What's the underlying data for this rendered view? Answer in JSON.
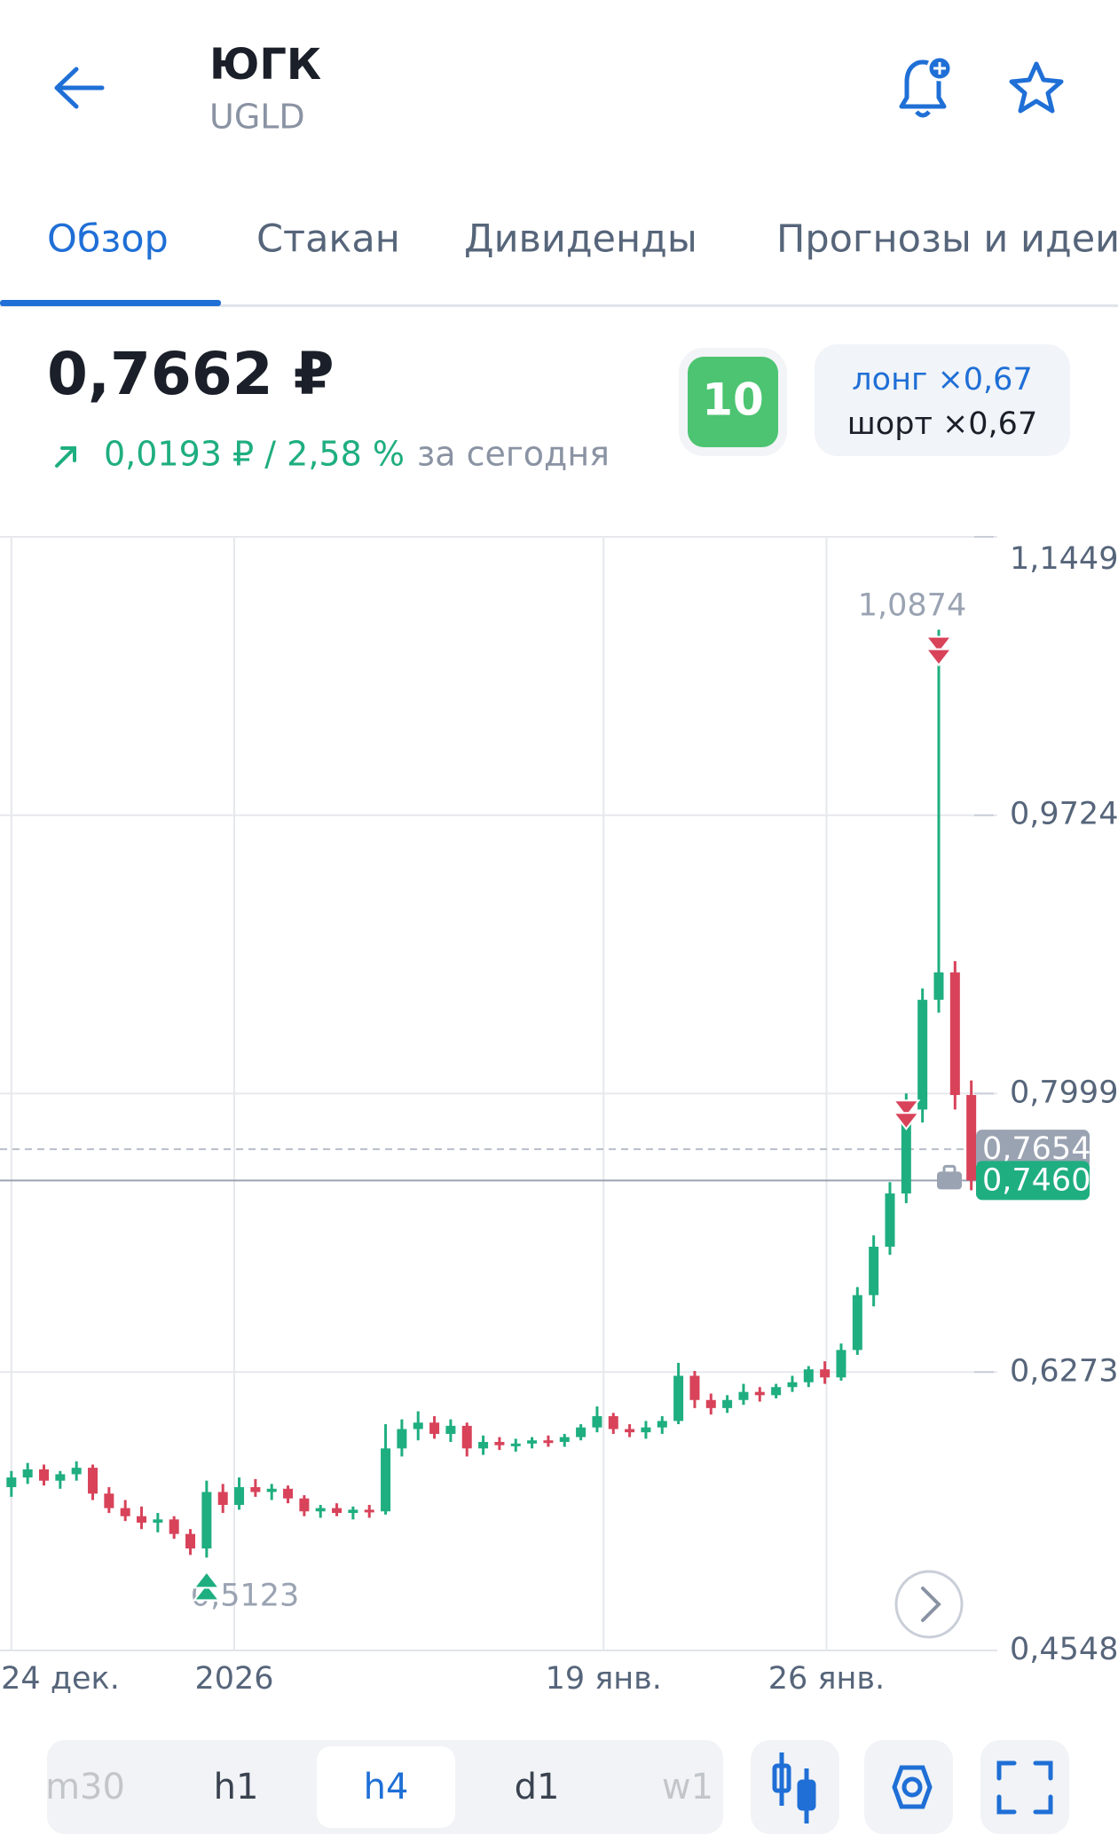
{
  "header": {
    "title": "ЮГК",
    "ticker": "UGLD"
  },
  "tabs": [
    "Обзор",
    "Стакан",
    "Дивиденды",
    "Прогнозы и идеи"
  ],
  "quote": {
    "price": "0,7662 ₽",
    "change": "0,0193 ₽ / 2,58 %",
    "period": "за сегодня",
    "badge": "10",
    "long": "лонг ×0,67",
    "short": "шорт ×0,67"
  },
  "chart_data": {
    "type": "candlestick",
    "ylim": [
      0.4548,
      1.1449
    ],
    "yticks": [
      {
        "value": 0.4548,
        "label": "0,4548"
      },
      {
        "value": 0.6273,
        "label": "0,6273"
      },
      {
        "value": 0.7999,
        "label": "0,7999"
      },
      {
        "value": 0.9724,
        "label": "0,9724"
      },
      {
        "value": 1.1449,
        "label": "1,1449"
      }
    ],
    "xlim": [
      -0.7,
      60.6
    ],
    "xticks": [
      {
        "value": 0,
        "label": "24 дек."
      },
      {
        "value": 13.7,
        "label": "2026"
      },
      {
        "value": 36.4,
        "label": "19 янв."
      },
      {
        "value": 50.1,
        "label": "26 янв."
      }
    ],
    "up_color": "#1fae80",
    "down_color": "#d8435a",
    "candles": [
      {
        "open": 0.556,
        "high": 0.566,
        "low": 0.55,
        "close": 0.562
      },
      {
        "open": 0.562,
        "high": 0.571,
        "low": 0.558,
        "close": 0.567
      },
      {
        "open": 0.567,
        "high": 0.57,
        "low": 0.557,
        "close": 0.56
      },
      {
        "open": 0.56,
        "high": 0.566,
        "low": 0.555,
        "close": 0.564
      },
      {
        "open": 0.564,
        "high": 0.572,
        "low": 0.56,
        "close": 0.568
      },
      {
        "open": 0.568,
        "high": 0.57,
        "low": 0.548,
        "close": 0.552
      },
      {
        "open": 0.552,
        "high": 0.556,
        "low": 0.54,
        "close": 0.543
      },
      {
        "open": 0.543,
        "high": 0.548,
        "low": 0.535,
        "close": 0.538
      },
      {
        "open": 0.538,
        "high": 0.544,
        "low": 0.53,
        "close": 0.534
      },
      {
        "open": 0.534,
        "high": 0.54,
        "low": 0.528,
        "close": 0.536
      },
      {
        "open": 0.536,
        "high": 0.538,
        "low": 0.524,
        "close": 0.527
      },
      {
        "open": 0.527,
        "high": 0.53,
        "low": 0.514,
        "close": 0.518
      },
      {
        "open": 0.518,
        "high": 0.56,
        "low": 0.5123,
        "close": 0.553
      },
      {
        "open": 0.553,
        "high": 0.558,
        "low": 0.54,
        "close": 0.545
      },
      {
        "open": 0.545,
        "high": 0.562,
        "low": 0.542,
        "close": 0.556
      },
      {
        "open": 0.556,
        "high": 0.561,
        "low": 0.55,
        "close": 0.553
      },
      {
        "open": 0.553,
        "high": 0.558,
        "low": 0.548,
        "close": 0.555
      },
      {
        "open": 0.555,
        "high": 0.557,
        "low": 0.546,
        "close": 0.549
      },
      {
        "open": 0.549,
        "high": 0.551,
        "low": 0.538,
        "close": 0.541
      },
      {
        "open": 0.541,
        "high": 0.545,
        "low": 0.537,
        "close": 0.543
      },
      {
        "open": 0.543,
        "high": 0.546,
        "low": 0.538,
        "close": 0.54
      },
      {
        "open": 0.54,
        "high": 0.544,
        "low": 0.536,
        "close": 0.542
      },
      {
        "open": 0.542,
        "high": 0.545,
        "low": 0.537,
        "close": 0.541
      },
      {
        "open": 0.541,
        "high": 0.595,
        "low": 0.539,
        "close": 0.58
      },
      {
        "open": 0.58,
        "high": 0.598,
        "low": 0.575,
        "close": 0.592
      },
      {
        "open": 0.592,
        "high": 0.603,
        "low": 0.585,
        "close": 0.596
      },
      {
        "open": 0.596,
        "high": 0.6,
        "low": 0.586,
        "close": 0.589
      },
      {
        "open": 0.589,
        "high": 0.598,
        "low": 0.584,
        "close": 0.594
      },
      {
        "open": 0.594,
        "high": 0.596,
        "low": 0.575,
        "close": 0.58
      },
      {
        "open": 0.58,
        "high": 0.588,
        "low": 0.576,
        "close": 0.584
      },
      {
        "open": 0.584,
        "high": 0.587,
        "low": 0.579,
        "close": 0.582
      },
      {
        "open": 0.582,
        "high": 0.586,
        "low": 0.578,
        "close": 0.583
      },
      {
        "open": 0.583,
        "high": 0.587,
        "low": 0.58,
        "close": 0.585
      },
      {
        "open": 0.585,
        "high": 0.588,
        "low": 0.581,
        "close": 0.584
      },
      {
        "open": 0.584,
        "high": 0.589,
        "low": 0.581,
        "close": 0.587
      },
      {
        "open": 0.587,
        "high": 0.595,
        "low": 0.585,
        "close": 0.593
      },
      {
        "open": 0.593,
        "high": 0.606,
        "low": 0.59,
        "close": 0.6
      },
      {
        "open": 0.6,
        "high": 0.602,
        "low": 0.589,
        "close": 0.592
      },
      {
        "open": 0.592,
        "high": 0.595,
        "low": 0.587,
        "close": 0.59
      },
      {
        "open": 0.59,
        "high": 0.597,
        "low": 0.586,
        "close": 0.593
      },
      {
        "open": 0.593,
        "high": 0.6,
        "low": 0.589,
        "close": 0.597
      },
      {
        "open": 0.597,
        "high": 0.633,
        "low": 0.595,
        "close": 0.625
      },
      {
        "open": 0.625,
        "high": 0.628,
        "low": 0.605,
        "close": 0.61
      },
      {
        "open": 0.61,
        "high": 0.614,
        "low": 0.601,
        "close": 0.605
      },
      {
        "open": 0.605,
        "high": 0.613,
        "low": 0.602,
        "close": 0.61
      },
      {
        "open": 0.61,
        "high": 0.62,
        "low": 0.607,
        "close": 0.615
      },
      {
        "open": 0.615,
        "high": 0.618,
        "low": 0.609,
        "close": 0.613
      },
      {
        "open": 0.613,
        "high": 0.62,
        "low": 0.611,
        "close": 0.618
      },
      {
        "open": 0.618,
        "high": 0.625,
        "low": 0.615,
        "close": 0.621
      },
      {
        "open": 0.621,
        "high": 0.631,
        "low": 0.618,
        "close": 0.629
      },
      {
        "open": 0.629,
        "high": 0.634,
        "low": 0.62,
        "close": 0.624
      },
      {
        "open": 0.624,
        "high": 0.645,
        "low": 0.622,
        "close": 0.641
      },
      {
        "open": 0.641,
        "high": 0.68,
        "low": 0.638,
        "close": 0.675
      },
      {
        "open": 0.675,
        "high": 0.712,
        "low": 0.668,
        "close": 0.705
      },
      {
        "open": 0.705,
        "high": 0.745,
        "low": 0.7,
        "close": 0.738
      },
      {
        "open": 0.738,
        "high": 0.8,
        "low": 0.732,
        "close": 0.79
      },
      {
        "open": 0.79,
        "high": 0.865,
        "low": 0.782,
        "close": 0.858
      },
      {
        "open": 0.858,
        "high": 1.0874,
        "low": 0.85,
        "close": 0.875
      },
      {
        "open": 0.875,
        "high": 0.882,
        "low": 0.79,
        "close": 0.799
      },
      {
        "open": 0.799,
        "high": 0.808,
        "low": 0.74,
        "close": 0.746
      }
    ],
    "buy_signals": [
      12
    ],
    "sell_signals": [
      55,
      57
    ],
    "annotations": [
      {
        "value": 1.0874,
        "label": "1,0874",
        "index": 57
      },
      {
        "value": 0.5123,
        "label": "0,5123",
        "index": 12
      }
    ],
    "price_lines": [
      {
        "value": 0.7654,
        "label": "0,7654",
        "color": "#9aa3b2"
      },
      {
        "value": 0.746,
        "label": "0,7460",
        "color": "#1fae80"
      }
    ]
  },
  "timeframes": [
    "m30",
    "h1",
    "h4",
    "d1",
    "w1"
  ],
  "selected_timeframe": 2
}
